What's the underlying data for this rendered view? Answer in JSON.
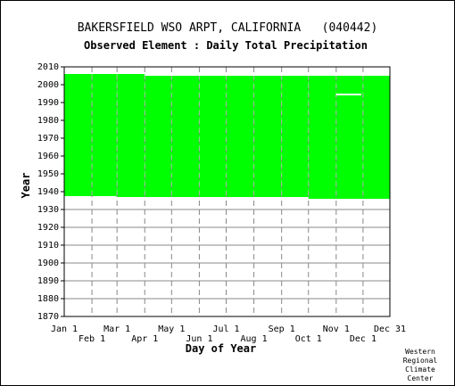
{
  "header": {
    "title": "BAKERSFIELD WSO ARPT, CALIFORNIA   (040442)",
    "subtitle": "Observed Element : Daily Total Precipitation"
  },
  "credit": [
    "Western",
    "Regional",
    "Climate",
    "Center"
  ],
  "chart_data": {
    "type": "area",
    "title": "BAKERSFIELD WSO ARPT, CALIFORNIA   (040442)",
    "subtitle": "Observed Element : Daily Total Precipitation",
    "xlabel": "Day of Year",
    "ylabel": "Year",
    "xlim": [
      1,
      365
    ],
    "ylim": [
      1870,
      2010
    ],
    "grid": true,
    "color": "#00ff00",
    "x_ticks": [
      {
        "label": "Jan 1",
        "day": 1,
        "row": 0
      },
      {
        "label": "Feb 1",
        "day": 32,
        "row": 1
      },
      {
        "label": "Mar 1",
        "day": 60,
        "row": 0
      },
      {
        "label": "Apr 1",
        "day": 91,
        "row": 1
      },
      {
        "label": "May 1",
        "day": 121,
        "row": 0
      },
      {
        "label": "Jun 1",
        "day": 152,
        "row": 1
      },
      {
        "label": "Jul 1",
        "day": 182,
        "row": 0
      },
      {
        "label": "Aug 1",
        "day": 213,
        "row": 1
      },
      {
        "label": "Sep 1",
        "day": 244,
        "row": 0
      },
      {
        "label": "Oct 1",
        "day": 274,
        "row": 1
      },
      {
        "label": "Nov 1",
        "day": 305,
        "row": 0
      },
      {
        "label": "Dec 1",
        "day": 335,
        "row": 1
      },
      {
        "label": "Dec 31",
        "day": 365,
        "row": 0
      }
    ],
    "y_ticks": [
      1870,
      1880,
      1890,
      1900,
      1910,
      1920,
      1930,
      1940,
      1950,
      1960,
      1970,
      1980,
      1990,
      2000,
      2010
    ],
    "coverage": [
      {
        "start_day": 1,
        "end_day": 59,
        "first_year": 1937.5,
        "last_year": 2006
      },
      {
        "start_day": 60,
        "end_day": 90,
        "first_year": 1937,
        "last_year": 2006
      },
      {
        "start_day": 91,
        "end_day": 243,
        "first_year": 1937,
        "last_year": 2005
      },
      {
        "start_day": 244,
        "end_day": 273,
        "first_year": 1937,
        "last_year": 2005
      },
      {
        "start_day": 274,
        "end_day": 365,
        "first_year": 1936,
        "last_year": 2005
      }
    ],
    "gaps": [
      {
        "start_day": 305,
        "end_day": 333,
        "year": 1994.5
      }
    ]
  }
}
